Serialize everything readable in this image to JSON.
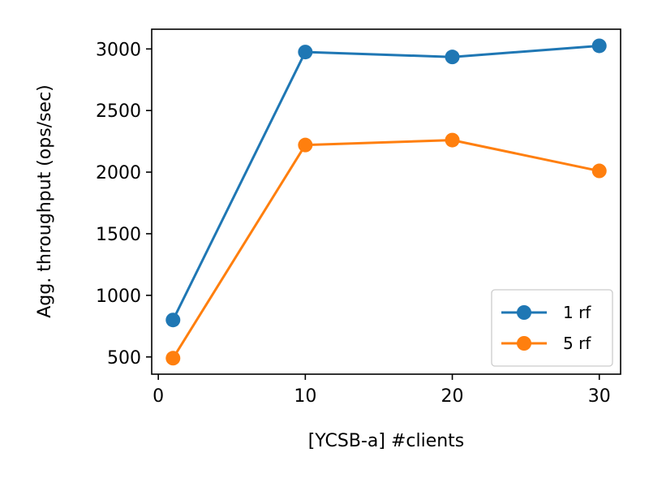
{
  "chart_data": {
    "type": "line",
    "title": "",
    "xlabel": "[YCSB-a]  #clients",
    "ylabel": "Agg. throughput (ops/sec)",
    "xlim": [
      -0.45,
      31.45
    ],
    "ylim": [
      360,
      3160
    ],
    "x_ticks": [
      0,
      10,
      20,
      30
    ],
    "y_ticks": [
      500,
      1000,
      1500,
      2000,
      2500,
      3000
    ],
    "x": [
      1,
      10,
      20,
      30
    ],
    "series": [
      {
        "name": "1 rf",
        "color": "#1f77b4",
        "values": [
          800,
          2975,
          2935,
          3025
        ]
      },
      {
        "name": "5 rf",
        "color": "#ff7f0e",
        "values": [
          490,
          2220,
          2260,
          2010
        ]
      }
    ],
    "grid": false,
    "legend_position": "lower-right"
  }
}
